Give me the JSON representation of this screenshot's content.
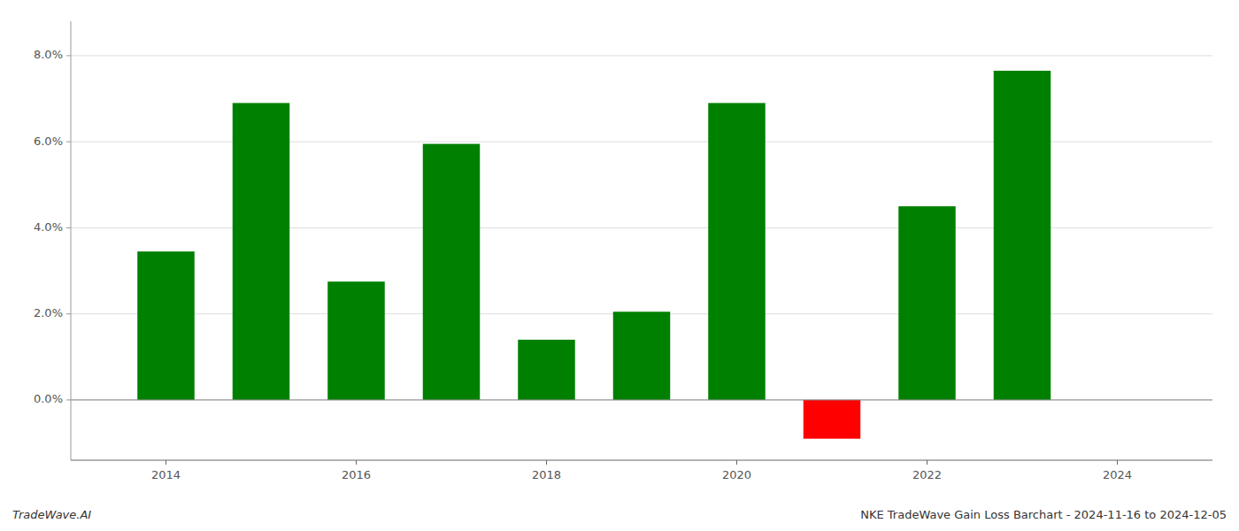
{
  "chart_data": {
    "type": "bar",
    "title": "NKE TradeWave Gain Loss Barchart - 2024-11-16 to 2024-12-05",
    "annotations": [
      "TradeWave.AI"
    ],
    "x": [
      2014,
      2015,
      2016,
      2017,
      2018,
      2019,
      2020,
      2021,
      2022,
      2023
    ],
    "values": [
      3.45,
      6.9,
      2.75,
      5.95,
      1.4,
      2.05,
      6.9,
      -0.9,
      4.5,
      7.65
    ],
    "colors": [
      "#008000",
      "#008000",
      "#008000",
      "#008000",
      "#008000",
      "#008000",
      "#008000",
      "#ff0000",
      "#008000",
      "#008000"
    ],
    "xlim": [
      2013,
      2025
    ],
    "xticks": [
      2014,
      2016,
      2018,
      2020,
      2022,
      2024
    ],
    "ylim": [
      -1.4,
      8.8
    ],
    "yticks": [
      {
        "value": 0.0,
        "label": "0.0%"
      },
      {
        "value": 2.0,
        "label": "2.0%"
      },
      {
        "value": 4.0,
        "label": "4.0%"
      },
      {
        "value": 6.0,
        "label": "6.0%"
      },
      {
        "value": 8.0,
        "label": "8.0%"
      }
    ],
    "grid": true
  }
}
